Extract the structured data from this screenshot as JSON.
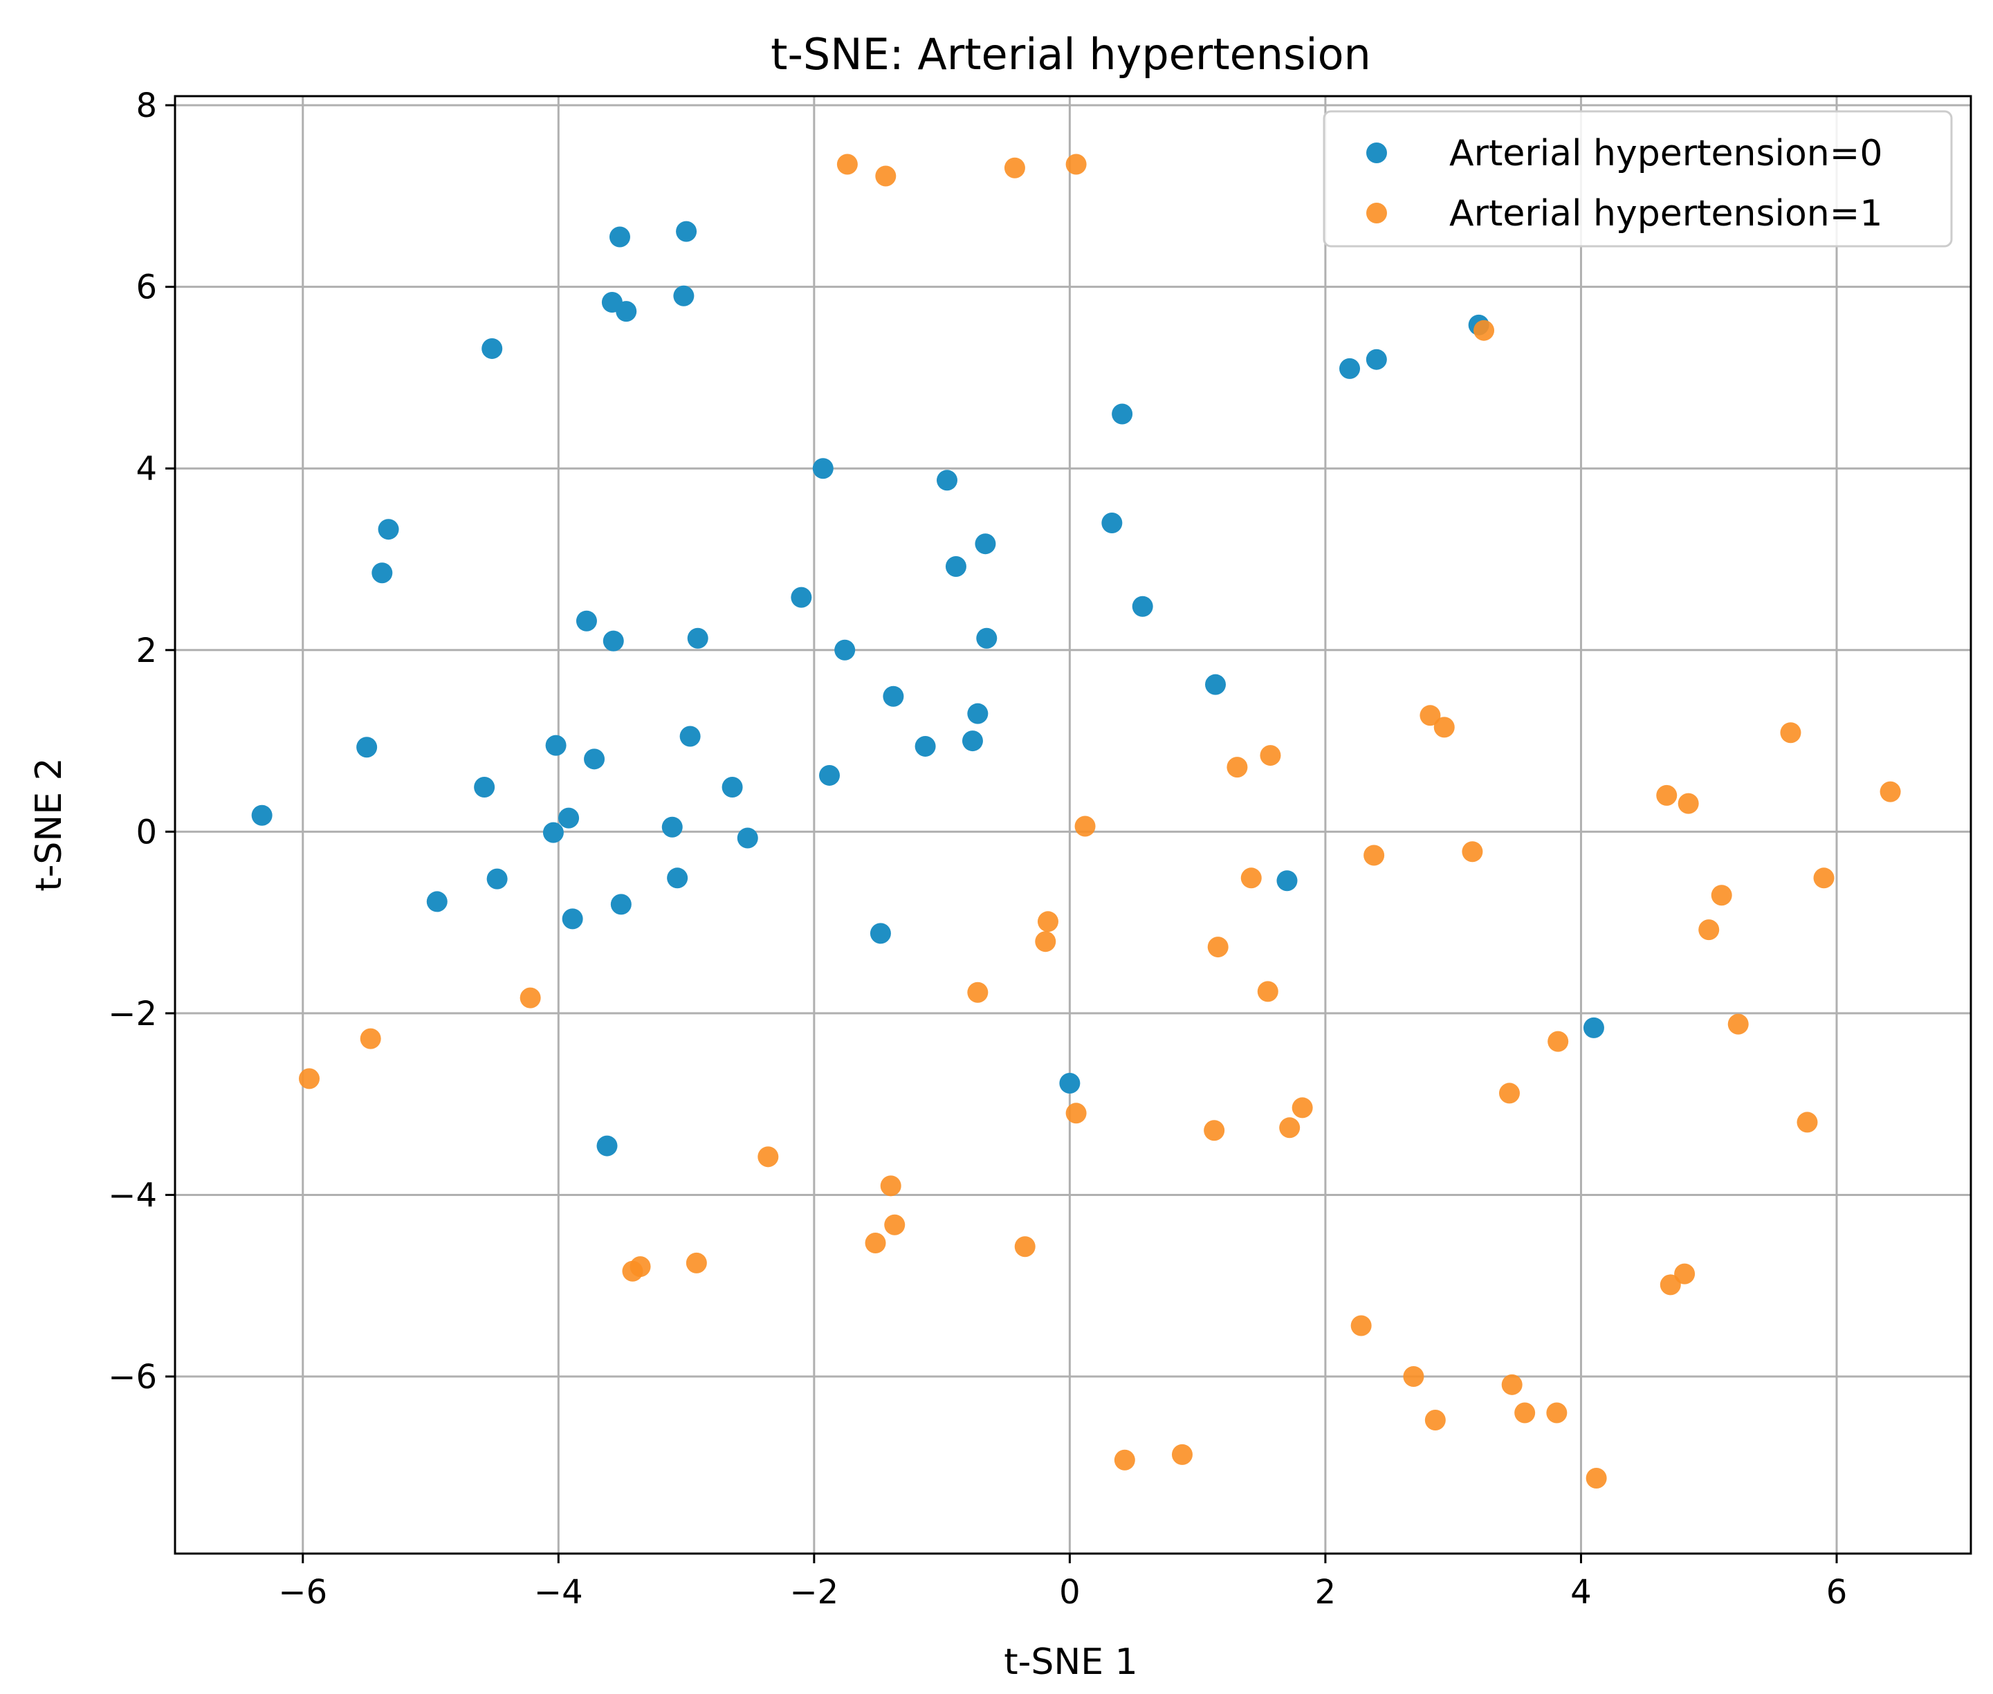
{
  "chart_data": {
    "type": "scatter",
    "title": "t-SNE: Arterial hypertension",
    "xlabel": "t-SNE 1",
    "ylabel": "t-SNE 2",
    "xlim": [
      -7,
      7.05
    ],
    "ylim": [
      -7.95,
      8.1
    ],
    "xticks": [
      -6,
      -4,
      -2,
      0,
      2,
      4,
      6
    ],
    "xtick_labels": [
      "−6",
      "−4",
      "−2",
      "0",
      "2",
      "4",
      "6"
    ],
    "yticks": [
      -6,
      -4,
      -2,
      0,
      2,
      4,
      6,
      8
    ],
    "ytick_labels": [
      "−6",
      "−4",
      "−2",
      "0",
      "2",
      "4",
      "6",
      "8"
    ],
    "grid": true,
    "legend_position": "top-right",
    "series": [
      {
        "name": "Arterial hypertension=0",
        "color": "#1f8fc4",
        "points": [
          [
            -6.32,
            0.18
          ],
          [
            -5.5,
            0.93
          ],
          [
            -5.38,
            2.85
          ],
          [
            -5.33,
            3.33
          ],
          [
            -4.95,
            -0.77
          ],
          [
            -4.58,
            0.49
          ],
          [
            -4.52,
            5.32
          ],
          [
            -4.48,
            -0.52
          ],
          [
            -4.02,
            0.95
          ],
          [
            -4.04,
            -0.01
          ],
          [
            -3.92,
            0.15
          ],
          [
            -3.89,
            -0.96
          ],
          [
            -3.78,
            2.32
          ],
          [
            -3.72,
            0.8
          ],
          [
            -3.58,
            5.83
          ],
          [
            -3.57,
            2.1
          ],
          [
            -3.52,
            6.55
          ],
          [
            -3.51,
            -0.8
          ],
          [
            -3.47,
            5.73
          ],
          [
            -3.02,
            5.9
          ],
          [
            -3.0,
            6.61
          ],
          [
            -2.97,
            1.05
          ],
          [
            -2.91,
            2.13
          ],
          [
            -3.11,
            0.05
          ],
          [
            -3.07,
            -0.51
          ],
          [
            -2.64,
            0.49
          ],
          [
            -2.52,
            -0.07
          ],
          [
            -2.1,
            2.58
          ],
          [
            -1.93,
            4.0
          ],
          [
            -1.88,
            0.62
          ],
          [
            -1.76,
            2.0
          ],
          [
            -1.48,
            -1.12
          ],
          [
            -1.38,
            1.49
          ],
          [
            -1.13,
            0.94
          ],
          [
            -0.96,
            3.87
          ],
          [
            -0.89,
            2.92
          ],
          [
            -0.76,
            1.0
          ],
          [
            -0.72,
            1.3
          ],
          [
            -0.66,
            3.17
          ],
          [
            -0.65,
            2.13
          ],
          [
            0.0,
            -2.77
          ],
          [
            0.33,
            3.4
          ],
          [
            0.41,
            4.6
          ],
          [
            0.57,
            2.48
          ],
          [
            1.14,
            1.62
          ],
          [
            1.7,
            -0.54
          ],
          [
            2.19,
            5.1
          ],
          [
            2.4,
            5.2
          ],
          [
            3.2,
            5.58
          ],
          [
            4.1,
            -2.16
          ],
          [
            -3.62,
            -3.46
          ]
        ]
      },
      {
        "name": "Arterial hypertension=1",
        "color": "#fb8f23",
        "points": [
          [
            -5.95,
            -2.72
          ],
          [
            -5.47,
            -2.28
          ],
          [
            -4.22,
            -1.83
          ],
          [
            -3.42,
            -4.84
          ],
          [
            -3.36,
            -4.79
          ],
          [
            -2.92,
            -4.75
          ],
          [
            -2.36,
            -3.58
          ],
          [
            -1.74,
            7.35
          ],
          [
            -1.44,
            7.22
          ],
          [
            -1.52,
            -4.53
          ],
          [
            -1.4,
            -3.9
          ],
          [
            -1.37,
            -4.33
          ],
          [
            -0.72,
            -1.77
          ],
          [
            -0.43,
            7.31
          ],
          [
            -0.35,
            -4.57
          ],
          [
            -0.17,
            -0.99
          ],
          [
            -0.19,
            -1.21
          ],
          [
            0.05,
            7.35
          ],
          [
            0.05,
            -3.1
          ],
          [
            0.12,
            0.06
          ],
          [
            0.43,
            -6.92
          ],
          [
            0.88,
            -6.86
          ],
          [
            1.13,
            -3.29
          ],
          [
            1.16,
            -1.27
          ],
          [
            1.31,
            0.71
          ],
          [
            1.42,
            -0.51
          ],
          [
            1.55,
            -1.76
          ],
          [
            1.57,
            0.84
          ],
          [
            1.72,
            -3.26
          ],
          [
            1.82,
            -3.04
          ],
          [
            2.28,
            -5.44
          ],
          [
            2.38,
            -0.26
          ],
          [
            2.69,
            -6.0
          ],
          [
            2.82,
            1.28
          ],
          [
            2.86,
            -6.48
          ],
          [
            2.93,
            1.15
          ],
          [
            3.15,
            -0.22
          ],
          [
            3.24,
            5.52
          ],
          [
            3.44,
            -2.88
          ],
          [
            3.46,
            -6.09
          ],
          [
            3.56,
            -6.4
          ],
          [
            3.81,
            -6.4
          ],
          [
            3.82,
            -2.31
          ],
          [
            4.12,
            -7.12
          ],
          [
            4.67,
            0.4
          ],
          [
            4.7,
            -4.99
          ],
          [
            4.81,
            -4.87
          ],
          [
            4.84,
            0.31
          ],
          [
            5.0,
            -1.08
          ],
          [
            5.1,
            -0.7
          ],
          [
            5.23,
            -2.12
          ],
          [
            5.64,
            1.09
          ],
          [
            5.77,
            -3.2
          ],
          [
            5.9,
            -0.51
          ],
          [
            6.42,
            0.44
          ]
        ]
      }
    ]
  }
}
